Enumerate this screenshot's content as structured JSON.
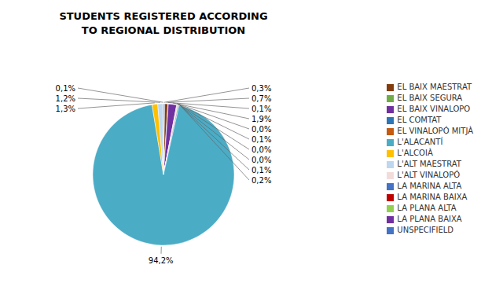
{
  "chart_data": {
    "type": "pie",
    "title": "STUDENTS REGISTERED ACCORDING",
    "subtitle": "TO REGIONAL DISTRIBUTION",
    "categories": [
      "UNSPECIFIELD",
      "EL BAIX MAESTRAT",
      "EL BAIX SEGURA",
      "EL BAIX VINALOPO",
      "EL COMTAT",
      "EL VINALOPÓ MITJÀ",
      "LA MARINA ALTA",
      "LA MARINA BAIXA",
      "LA PLANA ALTA",
      "LA PLANA BAIXA",
      "L'ALACANTÍ",
      "L'ALCOIÀ",
      "L'ALT MAESTRAT",
      "L'ALT VINALOPÓ"
    ],
    "values": [
      0.3,
      0.7,
      0.1,
      1.9,
      0.05,
      0.1,
      0.05,
      0.05,
      0.1,
      0.2,
      94.2,
      1.3,
      1.2,
      0.1
    ],
    "value_labels": [
      "0,3%",
      "0,7%",
      "0,1%",
      "1,9%",
      "0,0%",
      "0,1%",
      "0,0%",
      "0,0%",
      "0,1%",
      "0,2%",
      "94,2%",
      "1,3%",
      "1,2%",
      "0,1%"
    ],
    "colors": [
      "#4472C4",
      "#843C0C",
      "#70AD47",
      "#7030A0",
      "#2E75B6",
      "#C55A11",
      "#4472C4",
      "#C00000",
      "#92D050",
      "#7030A0",
      "#4BACC6",
      "#FFC000",
      "#BDD7EE",
      "#F2DCDB"
    ],
    "data_labels": true,
    "legend": "right"
  }
}
